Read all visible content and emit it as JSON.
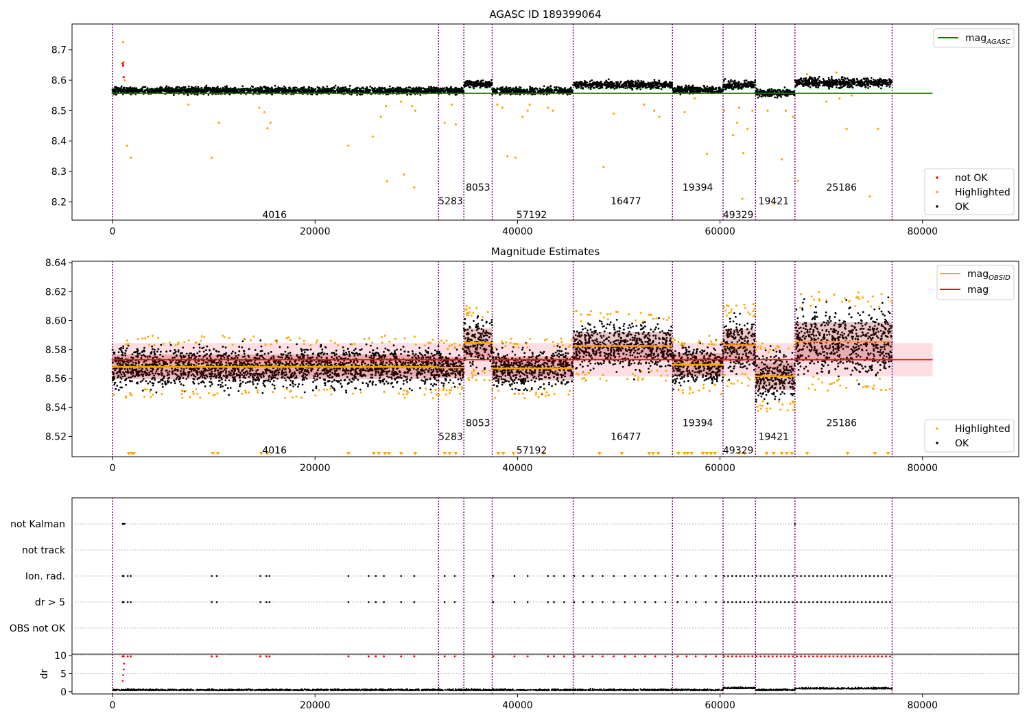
{
  "chart_data": [
    {
      "type": "scatter",
      "title": "AGASC ID 189399064",
      "xlim": [
        -4000,
        89500
      ],
      "ylim": [
        8.14,
        8.785
      ],
      "x_ticks": [
        0,
        20000,
        40000,
        60000,
        80000
      ],
      "x_tick_labels": [
        "0",
        "20000",
        "40000",
        "60000",
        "80000"
      ],
      "y_ticks": [
        8.2,
        8.3,
        8.4,
        8.5,
        8.6,
        8.7
      ],
      "y_tick_labels": [
        "8.2",
        "8.3",
        "8.4",
        "8.5",
        "8.6",
        "8.7"
      ],
      "legend_upper": {
        "position": "top-right",
        "entries": [
          {
            "label": "mag",
            "subscript": "AGASC",
            "color": "#008000",
            "kind": "line"
          }
        ]
      },
      "legend_lower": {
        "position": "bottom-right",
        "entries": [
          {
            "label": "not OK",
            "color": "#ff0000",
            "kind": "dot"
          },
          {
            "label": "Highlighted",
            "color": "#ffa500",
            "kind": "dot"
          },
          {
            "label": "OK",
            "color": "#000000",
            "kind": "dot"
          }
        ]
      },
      "mag_agasc": 8.557,
      "segments": [
        {
          "start": 0,
          "end": 32200,
          "level": 8.566,
          "spread": 0.013
        },
        {
          "start": 32200,
          "end": 34700,
          "level": 8.566,
          "spread": 0.013
        },
        {
          "start": 34700,
          "end": 37500,
          "level": 8.588,
          "spread": 0.013
        },
        {
          "start": 37500,
          "end": 45500,
          "level": 8.565,
          "spread": 0.013
        },
        {
          "start": 45500,
          "end": 55300,
          "level": 8.585,
          "spread": 0.014
        },
        {
          "start": 55300,
          "end": 60300,
          "level": 8.569,
          "spread": 0.013
        },
        {
          "start": 60300,
          "end": 63500,
          "level": 8.585,
          "spread": 0.015
        },
        {
          "start": 63500,
          "end": 67400,
          "level": 8.558,
          "spread": 0.014
        },
        {
          "start": 67400,
          "end": 77000,
          "level": 8.592,
          "spread": 0.018
        }
      ],
      "not_ok_points": [
        {
          "x": 1000,
          "y": 8.655
        },
        {
          "x": 1050,
          "y": 8.648
        },
        {
          "x": 1100,
          "y": 8.61
        }
      ],
      "highlighted_points": [
        {
          "x": 1050,
          "y": 8.725
        },
        {
          "x": 1100,
          "y": 8.66
        },
        {
          "x": 1200,
          "y": 8.6
        },
        {
          "x": 1450,
          "y": 8.385
        },
        {
          "x": 1800,
          "y": 8.345
        },
        {
          "x": 7500,
          "y": 8.52
        },
        {
          "x": 9800,
          "y": 8.345
        },
        {
          "x": 10500,
          "y": 8.46
        },
        {
          "x": 14500,
          "y": 8.51
        },
        {
          "x": 15000,
          "y": 8.495
        },
        {
          "x": 15300,
          "y": 8.442
        },
        {
          "x": 15600,
          "y": 8.46
        },
        {
          "x": 23300,
          "y": 8.385
        },
        {
          "x": 25700,
          "y": 8.415
        },
        {
          "x": 26500,
          "y": 8.48
        },
        {
          "x": 27000,
          "y": 8.515
        },
        {
          "x": 27100,
          "y": 8.268
        },
        {
          "x": 28500,
          "y": 8.53
        },
        {
          "x": 28800,
          "y": 8.29
        },
        {
          "x": 29600,
          "y": 8.515
        },
        {
          "x": 29800,
          "y": 8.248
        },
        {
          "x": 29900,
          "y": 8.5
        },
        {
          "x": 32800,
          "y": 8.46
        },
        {
          "x": 33500,
          "y": 8.52
        },
        {
          "x": 33900,
          "y": 8.455
        },
        {
          "x": 38000,
          "y": 8.52
        },
        {
          "x": 38500,
          "y": 8.51
        },
        {
          "x": 39000,
          "y": 8.35
        },
        {
          "x": 39800,
          "y": 8.345
        },
        {
          "x": 40500,
          "y": 8.48
        },
        {
          "x": 41000,
          "y": 8.5
        },
        {
          "x": 41200,
          "y": 8.52
        },
        {
          "x": 43000,
          "y": 8.51
        },
        {
          "x": 43500,
          "y": 8.5
        },
        {
          "x": 48500,
          "y": 8.315
        },
        {
          "x": 49500,
          "y": 8.49
        },
        {
          "x": 52500,
          "y": 8.52
        },
        {
          "x": 53500,
          "y": 8.5
        },
        {
          "x": 54000,
          "y": 8.48
        },
        {
          "x": 56500,
          "y": 8.495
        },
        {
          "x": 57500,
          "y": 8.54
        },
        {
          "x": 58700,
          "y": 8.358
        },
        {
          "x": 60400,
          "y": 8.5
        },
        {
          "x": 61300,
          "y": 8.42
        },
        {
          "x": 61700,
          "y": 8.46
        },
        {
          "x": 61900,
          "y": 8.51
        },
        {
          "x": 62300,
          "y": 8.36
        },
        {
          "x": 62200,
          "y": 8.21
        },
        {
          "x": 62700,
          "y": 8.44
        },
        {
          "x": 63200,
          "y": 8.5
        },
        {
          "x": 64700,
          "y": 8.5
        },
        {
          "x": 65300,
          "y": 8.195
        },
        {
          "x": 66100,
          "y": 8.34
        },
        {
          "x": 66500,
          "y": 8.5
        },
        {
          "x": 67200,
          "y": 8.48
        },
        {
          "x": 67700,
          "y": 8.27
        },
        {
          "x": 68600,
          "y": 8.62
        },
        {
          "x": 71500,
          "y": 8.625
        },
        {
          "x": 72500,
          "y": 8.44
        },
        {
          "x": 73000,
          "y": 8.55
        },
        {
          "x": 74800,
          "y": 8.218
        },
        {
          "x": 75600,
          "y": 8.44
        },
        {
          "x": 70500,
          "y": 8.53
        },
        {
          "x": 71800,
          "y": 8.54
        }
      ],
      "obsid_labels": [
        {
          "label": "4016",
          "x": 16000,
          "y": 8.158
        },
        {
          "label": "5283",
          "x": 33400,
          "y": 8.203
        },
        {
          "label": "8053",
          "x": 36100,
          "y": 8.248
        },
        {
          "label": "57192",
          "x": 41400,
          "y": 8.158
        },
        {
          "label": "16477",
          "x": 50700,
          "y": 8.203
        },
        {
          "label": "19394",
          "x": 57800,
          "y": 8.248
        },
        {
          "label": "49329",
          "x": 61800,
          "y": 8.158
        },
        {
          "label": "19421",
          "x": 65300,
          "y": 8.203
        },
        {
          "label": "25186",
          "x": 72000,
          "y": 8.248
        }
      ],
      "vlines": [
        0,
        32200,
        34700,
        37500,
        45500,
        55300,
        60300,
        63500,
        67400,
        77000
      ]
    },
    {
      "type": "scatter",
      "title": "Magnitude Estimates",
      "xlim": [
        -4000,
        89500
      ],
      "ylim": [
        8.506,
        8.641
      ],
      "x_ticks": [
        0,
        20000,
        40000,
        60000,
        80000
      ],
      "x_tick_labels": [
        "0",
        "20000",
        "40000",
        "60000",
        "80000"
      ],
      "y_ticks": [
        8.52,
        8.54,
        8.56,
        8.58,
        8.6,
        8.62,
        8.64
      ],
      "y_tick_labels": [
        "8.52",
        "8.54",
        "8.56",
        "8.58",
        "8.60",
        "8.62",
        "8.64"
      ],
      "legend_upper": {
        "position": "top-right",
        "entries": [
          {
            "label": "mag",
            "subscript": "OBSID",
            "color": "#ffa500",
            "kind": "line"
          },
          {
            "label": "mag",
            "subscript": "",
            "color": "#ff0000",
            "kind": "line"
          }
        ]
      },
      "legend_lower": {
        "position": "bottom-right",
        "entries": [
          {
            "label": "Highlighted",
            "color": "#ffa500",
            "kind": "dot"
          },
          {
            "label": "OK",
            "color": "#000000",
            "kind": "dot"
          }
        ]
      },
      "mag": 8.573,
      "mag_band": [
        8.5615,
        8.5845
      ],
      "segments": [
        {
          "start": 0,
          "end": 32200,
          "level": 8.568,
          "spread": 0.0155
        },
        {
          "start": 32200,
          "end": 34700,
          "level": 8.5675,
          "spread": 0.0135
        },
        {
          "start": 34700,
          "end": 37500,
          "level": 8.5845,
          "spread": 0.0185
        },
        {
          "start": 37500,
          "end": 45500,
          "level": 8.567,
          "spread": 0.015
        },
        {
          "start": 45500,
          "end": 55300,
          "level": 8.5825,
          "spread": 0.0175
        },
        {
          "start": 55300,
          "end": 60300,
          "level": 8.5695,
          "spread": 0.0145
        },
        {
          "start": 60300,
          "end": 63500,
          "level": 8.583,
          "spread": 0.0205
        },
        {
          "start": 63500,
          "end": 67400,
          "level": 8.5615,
          "spread": 0.0175
        },
        {
          "start": 67400,
          "end": 77000,
          "level": 8.5855,
          "spread": 0.0245
        }
      ],
      "obsid_labels": [
        {
          "label": "4016",
          "x": 16000,
          "y": 8.5105
        },
        {
          "label": "5283",
          "x": 33400,
          "y": 8.52
        },
        {
          "label": "8053",
          "x": 36100,
          "y": 8.5295
        },
        {
          "label": "57192",
          "x": 41400,
          "y": 8.5105
        },
        {
          "label": "16477",
          "x": 50700,
          "y": 8.52
        },
        {
          "label": "19394",
          "x": 57800,
          "y": 8.5295
        },
        {
          "label": "49329",
          "x": 61800,
          "y": 8.5105
        },
        {
          "label": "19421",
          "x": 65300,
          "y": 8.52
        },
        {
          "label": "25186",
          "x": 72000,
          "y": 8.5295
        }
      ],
      "vlines": [
        0,
        32200,
        34700,
        37500,
        45500,
        55300,
        60300,
        63500,
        67400,
        77000
      ]
    },
    {
      "type": "scatter",
      "title": "",
      "xlim": [
        -4000,
        89500
      ],
      "categories": [
        "not Kalman",
        "not track",
        "Ion. rad.",
        "dr > 5",
        "OBS not OK"
      ],
      "flag_points": {
        "not Kalman": [
          1000,
          1050,
          1100,
          1150,
          1200,
          67400
        ],
        "not track": [],
        "Ion. rad.": [
          1000,
          1100,
          1500,
          1800,
          9800,
          10300,
          14600,
          15200,
          15500,
          23300,
          25300,
          26000,
          26800,
          28500,
          29800,
          32800,
          33800,
          37600,
          39700,
          41000,
          43000,
          43600,
          44600,
          45600,
          46500,
          47400,
          48400,
          49500,
          50600,
          51600,
          52600,
          53600,
          54600,
          55800,
          56700,
          57600,
          58600,
          59600,
          60400,
          60800,
          61200,
          61600,
          62000,
          62400,
          62800,
          63200,
          63600,
          64000,
          64400,
          64800,
          65200,
          65600,
          66000,
          66400,
          66800,
          67200,
          67600,
          68000,
          68400,
          68800,
          69200,
          69600,
          70000,
          70400,
          70800,
          71200,
          71600,
          72000,
          72400,
          72800,
          73200,
          73600,
          74000,
          74400,
          74800,
          75200,
          75600,
          76000,
          76400,
          76800
        ],
        "dr > 5": [
          1000,
          1100,
          1500,
          1800,
          9800,
          10300,
          14600,
          15200,
          15500,
          23300,
          25300,
          26000,
          26800,
          28500,
          29800,
          32800,
          33800,
          37600,
          39700,
          41000,
          43000,
          43600,
          44600,
          45600,
          46500,
          47400,
          48400,
          49500,
          50600,
          51600,
          52600,
          53600,
          54600,
          55800,
          56700,
          57600,
          58600,
          59600,
          60400,
          60800,
          61200,
          61600,
          62000,
          62400,
          62800,
          63200,
          63600,
          64000,
          64400,
          64800,
          65200,
          65600,
          66000,
          66400,
          66800,
          67200,
          67600,
          68000,
          68400,
          68800,
          69200,
          69600,
          70000,
          70400,
          70800,
          71200,
          71600,
          72000,
          72400,
          72800,
          73200,
          73600,
          74000,
          74400,
          74800,
          75200,
          75600,
          76000,
          76400,
          76800
        ],
        "OBS not OK": []
      },
      "vlines": [
        0,
        32200,
        34700,
        37500,
        45500,
        55300,
        60300,
        63500,
        67400,
        77000
      ]
    },
    {
      "type": "scatter",
      "ylabel": "dr",
      "xlim": [
        -4000,
        89500
      ],
      "ylim": [
        -0.6,
        10.4
      ],
      "x_ticks": [
        0,
        20000,
        40000,
        60000,
        80000
      ],
      "x_tick_labels": [
        "0",
        "20000",
        "40000",
        "60000",
        "80000"
      ],
      "y_ticks": [
        0,
        5,
        10
      ],
      "y_tick_labels": [
        "0",
        "5",
        "10"
      ],
      "red_clip_level": 9.8,
      "vlines": [
        0,
        32200,
        34700,
        37500,
        45500,
        55300,
        60300,
        63500,
        67400,
        77000
      ]
    }
  ],
  "colors": {
    "ok": "#000000",
    "highlighted": "#ffa500",
    "not_ok": "#ff0000",
    "agasc": "#008000",
    "vline": "#800080",
    "band": "#ffb6c1"
  }
}
